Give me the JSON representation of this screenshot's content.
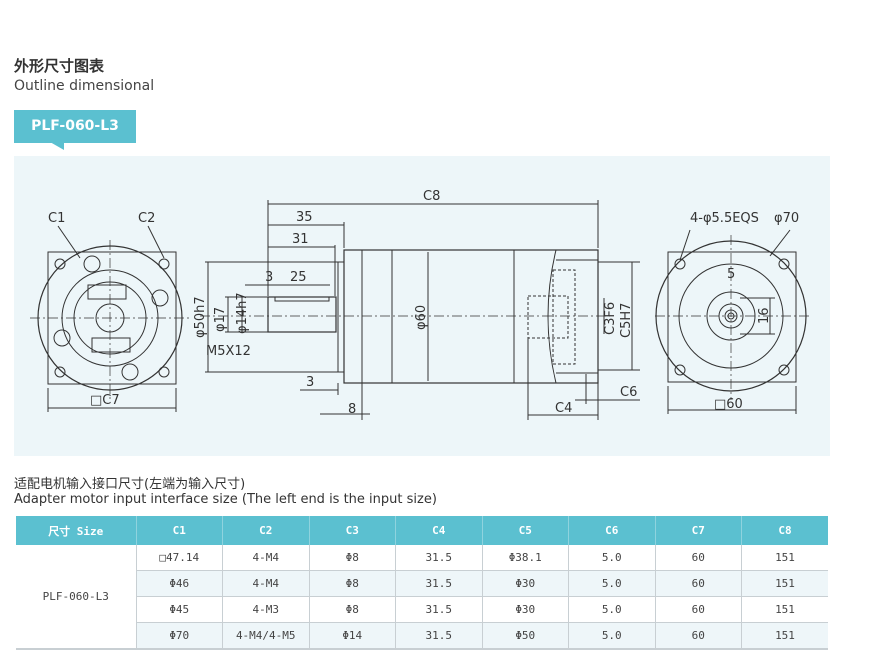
{
  "header": {
    "title_cn": "外形尺寸图表",
    "title_en": "Outline dimensional",
    "model_tag": "PLF-060-L3"
  },
  "colors": {
    "accent": "#5bc0d0",
    "panel_bg": "#edf6f9",
    "row_alt": "#eef6f9"
  },
  "drawing": {
    "labels": {
      "c1": "C1",
      "c2": "C2",
      "c7": "□C7",
      "c8": "C8",
      "d35": "35",
      "d31": "31",
      "d3a": "3",
      "d25": "25",
      "d50": "φ50h7",
      "d17": "φ17",
      "d14": "φ14h7",
      "m5": "M5X12",
      "d60": "φ60",
      "d3b": "3",
      "d8": "8",
      "c3": "C3F6",
      "c5": "C5H7",
      "c6": "C6",
      "c4": "C4",
      "holes": "4-φ5.5EQS",
      "d70": "φ70",
      "k5": "5",
      "k16": "16",
      "sq60": "□60"
    }
  },
  "table": {
    "caption_cn": "适配电机输入接口尺寸(左端为输入尺寸)",
    "caption_en": "Adapter motor input interface size (The left end is the input size)",
    "headers": [
      "尺寸 Size",
      "C1",
      "C2",
      "C3",
      "C4",
      "C5",
      "C6",
      "C7",
      "C8"
    ],
    "model": "PLF-060-L3",
    "rows": [
      [
        "□47.14",
        "4-M4",
        "Φ8",
        "31.5",
        "Φ38.1",
        "5.0",
        "60",
        "151"
      ],
      [
        "Φ46",
        "4-M4",
        "Φ8",
        "31.5",
        "Φ30",
        "5.0",
        "60",
        "151"
      ],
      [
        "Φ45",
        "4-M3",
        "Φ8",
        "31.5",
        "Φ30",
        "5.0",
        "60",
        "151"
      ],
      [
        "Φ70",
        "4-M4/4-M5",
        "Φ14",
        "31.5",
        "Φ50",
        "5.0",
        "60",
        "151"
      ]
    ]
  }
}
